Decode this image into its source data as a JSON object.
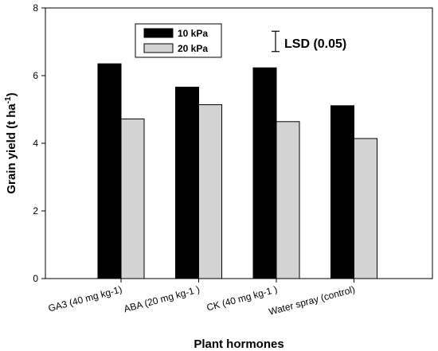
{
  "chart_data": {
    "type": "bar",
    "categories": [
      "GA3 (40 mg kg-1)",
      "ABA (20 mg kg-1 )",
      "CK (40 mg kg-1 )",
      "Water spray (control)"
    ],
    "series": [
      {
        "name": "10 kPa",
        "values": [
          6.35,
          5.66,
          6.23,
          5.11
        ],
        "color": "#000000"
      },
      {
        "name": "20 kPa",
        "values": [
          4.72,
          5.14,
          4.64,
          4.14
        ],
        "color": "#d3d3d3"
      }
    ],
    "xlabel": "Plant hormones",
    "ylabel": {
      "main": "Grain yield (t ha",
      "sup": "-1",
      "close": ")"
    },
    "ylim": [
      0,
      8
    ],
    "yticks": [
      0,
      2,
      4,
      6,
      8
    ],
    "legend_position": "top-center",
    "grid": false,
    "lsd": {
      "label": "LSD (0.05)",
      "value": 0.6
    }
  }
}
